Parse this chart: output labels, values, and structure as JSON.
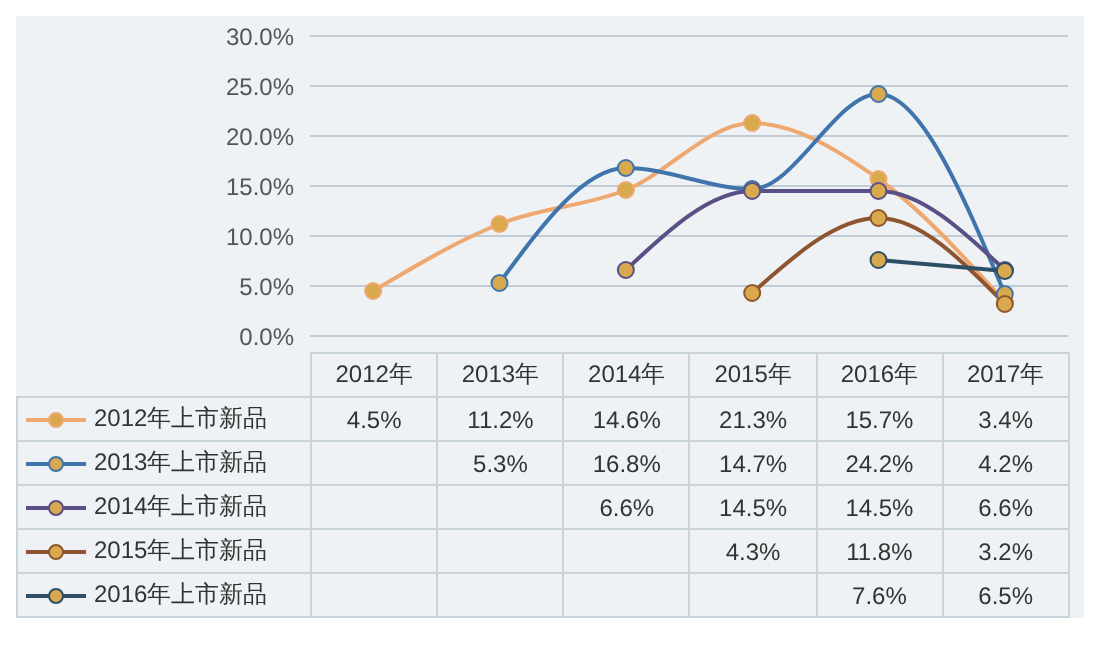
{
  "chart_data": {
    "type": "line",
    "categories": [
      "2012年",
      "2013年",
      "2014年",
      "2015年",
      "2016年",
      "2017年"
    ],
    "ylim": [
      0,
      30
    ],
    "yticks": [
      {
        "value": 0,
        "label": "0.0%"
      },
      {
        "value": 5,
        "label": "5.0%"
      },
      {
        "value": 10,
        "label": "10.0%"
      },
      {
        "value": 15,
        "label": "15.0%"
      },
      {
        "value": 20,
        "label": "20.0%"
      },
      {
        "value": 25,
        "label": "25.0%"
      },
      {
        "value": 30,
        "label": "30.0%"
      }
    ],
    "grid": "y",
    "marker": "circle",
    "legend": "bottom",
    "series": [
      {
        "name": "2012年上市新品",
        "color": "#eea870",
        "values": [
          4.5,
          11.2,
          14.6,
          21.3,
          15.7,
          3.4
        ],
        "value_labels": [
          "4.5%",
          "11.2%",
          "14.6%",
          "21.3%",
          "15.7%",
          "3.4%"
        ]
      },
      {
        "name": "2013年上市新品",
        "color": "#3f74ac",
        "values": [
          null,
          5.3,
          16.8,
          14.7,
          24.2,
          4.2
        ],
        "value_labels": [
          null,
          "5.3%",
          "16.8%",
          "14.7%",
          "24.2%",
          "4.2%"
        ]
      },
      {
        "name": "2014年上市新品",
        "color": "#5a4f86",
        "values": [
          null,
          null,
          6.6,
          14.5,
          14.5,
          6.6
        ],
        "value_labels": [
          null,
          null,
          "6.6%",
          "14.5%",
          "14.5%",
          "6.6%"
        ]
      },
      {
        "name": "2015年上市新品",
        "color": "#8f5530",
        "values": [
          null,
          null,
          null,
          4.3,
          11.8,
          3.2
        ],
        "value_labels": [
          null,
          null,
          null,
          "4.3%",
          "11.8%",
          "3.2%"
        ]
      },
      {
        "name": "2016年上市新品",
        "color": "#2d4f66",
        "values": [
          null,
          null,
          null,
          null,
          7.6,
          6.5
        ],
        "value_labels": [
          null,
          null,
          null,
          null,
          "7.6%",
          "6.5%"
        ]
      }
    ]
  }
}
